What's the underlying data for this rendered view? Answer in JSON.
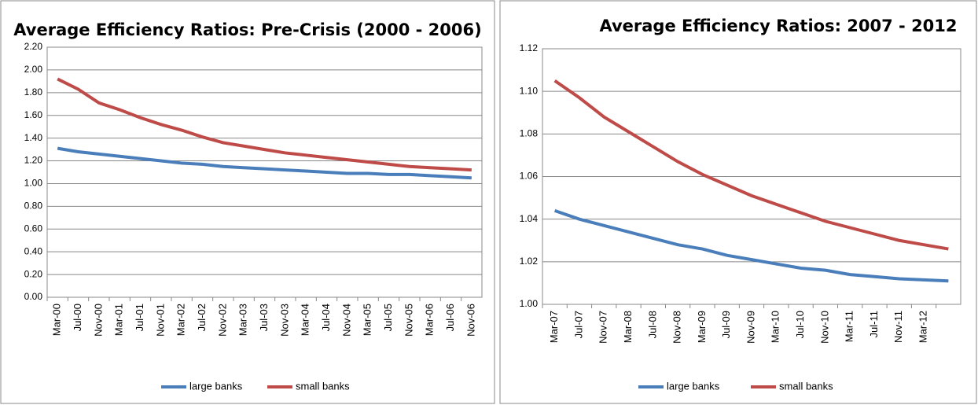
{
  "chart_data": [
    {
      "type": "line",
      "title": "Average Efficiency Ratios: Pre-Crisis (2000 - 2006)",
      "categories": [
        "Mar-00",
        "Jul-00",
        "Nov-00",
        "Mar-01",
        "Jul-01",
        "Nov-01",
        "Mar-02",
        "Jul-02",
        "Nov-02",
        "Mar-03",
        "Jul-03",
        "Nov-03",
        "Mar-04",
        "Jul-04",
        "Nov-04",
        "Mar-05",
        "Jul-05",
        "Nov-05",
        "Mar-06",
        "Jul-06",
        "Nov-06"
      ],
      "series": [
        {
          "name": "large banks",
          "color": "#4a7ebb",
          "values": [
            1.31,
            1.28,
            1.26,
            1.24,
            1.22,
            1.2,
            1.18,
            1.17,
            1.15,
            1.14,
            1.13,
            1.12,
            1.11,
            1.1,
            1.09,
            1.09,
            1.08,
            1.08,
            1.07,
            1.06,
            1.05
          ]
        },
        {
          "name": "small banks",
          "color": "#be4b48",
          "values": [
            1.92,
            1.83,
            1.71,
            1.65,
            1.58,
            1.52,
            1.47,
            1.41,
            1.36,
            1.33,
            1.3,
            1.27,
            1.25,
            1.23,
            1.21,
            1.19,
            1.17,
            1.15,
            1.14,
            1.13,
            1.12
          ]
        }
      ],
      "ylim": [
        0,
        2.2
      ],
      "yticks": [
        {
          "value": 0,
          "label": "0.00"
        },
        {
          "value": 0.2,
          "label": "0.20"
        },
        {
          "value": 0.4,
          "label": "0.40"
        },
        {
          "value": 0.6,
          "label": "0.60"
        },
        {
          "value": 0.8,
          "label": "0.80"
        },
        {
          "value": 1,
          "label": "1.00"
        },
        {
          "value": 1.2,
          "label": "1.20"
        },
        {
          "value": 1.4,
          "label": "1.40"
        },
        {
          "value": 1.6,
          "label": "1.60"
        },
        {
          "value": 1.8,
          "label": "1.80"
        },
        {
          "value": 2,
          "label": "2.00"
        },
        {
          "value": 2.2,
          "label": "2.20"
        }
      ],
      "grid": true,
      "legend": "bottom"
    },
    {
      "type": "line",
      "title": "Average Efficiency Ratios: 2007 - 2012",
      "categories": [
        "Mar-07",
        "Jul-07",
        "Nov-07",
        "Mar-08",
        "Jul-08",
        "Nov-08",
        "Mar-09",
        "Jul-09",
        "Nov-09",
        "Mar-10",
        "Jul-10",
        "Nov-10",
        "Mar-11",
        "Jul-11",
        "Nov-11",
        "Mar-12",
        null
      ],
      "series": [
        {
          "name": "large banks",
          "color": "#4a7ebb",
          "values": [
            1.044,
            1.04,
            1.037,
            1.034,
            1.031,
            1.028,
            1.026,
            1.023,
            1.021,
            1.019,
            1.017,
            1.016,
            1.014,
            1.013,
            1.012,
            1.0115,
            1.011
          ]
        },
        {
          "name": "small banks",
          "color": "#be4b48",
          "values": [
            1.105,
            1.097,
            1.088,
            1.081,
            1.074,
            1.067,
            1.061,
            1.056,
            1.051,
            1.047,
            1.043,
            1.039,
            1.036,
            1.033,
            1.03,
            1.028,
            1.026
          ]
        }
      ],
      "ylim": [
        1,
        1.12
      ],
      "yticks": [
        {
          "value": 1,
          "label": "1.00"
        },
        1.02,
        1.04,
        1.06,
        1.08,
        {
          "value": 1.1,
          "label": "1.10"
        },
        1.12
      ],
      "grid": true,
      "legend": "bottom"
    }
  ]
}
